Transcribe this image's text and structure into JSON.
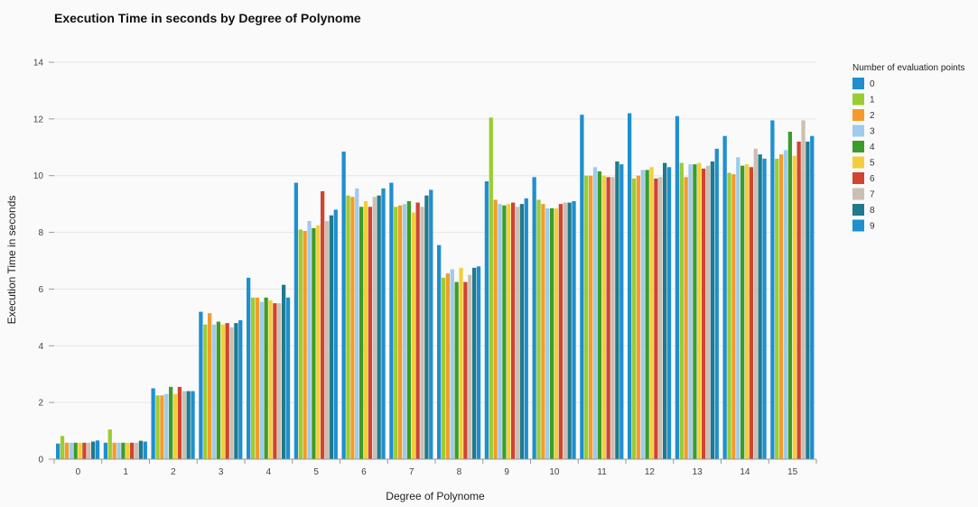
{
  "chart_data": {
    "type": "bar",
    "title": "Execution Time in seconds by Degree of Polynome",
    "xlabel": "Degree of Polynome",
    "ylabel": "Execution Time in seconds",
    "ylim": [
      0,
      14
    ],
    "yticks": [
      0,
      2,
      4,
      6,
      8,
      10,
      12,
      14
    ],
    "grid": true,
    "legend_title": "Number of evaluation points",
    "legend_position": "top-right",
    "categories": [
      "0",
      "1",
      "2",
      "3",
      "4",
      "5",
      "6",
      "7",
      "8",
      "9",
      "10",
      "11",
      "12",
      "13",
      "14",
      "15"
    ],
    "series": [
      {
        "name": "0",
        "color": "#1f8fcf",
        "values": [
          0.55,
          0.58,
          2.5,
          5.2,
          6.4,
          9.75,
          10.85,
          9.75,
          7.55,
          9.8,
          9.95,
          12.15,
          12.2,
          12.1,
          11.4,
          11.95
        ]
      },
      {
        "name": "1",
        "color": "#9acd32",
        "values": [
          0.82,
          1.05,
          2.25,
          4.75,
          5.7,
          8.1,
          9.3,
          8.9,
          6.4,
          12.05,
          9.15,
          10.0,
          9.9,
          10.45,
          10.1,
          10.6
        ]
      },
      {
        "name": "2",
        "color": "#f39c2b",
        "values": [
          0.58,
          0.58,
          2.25,
          5.15,
          5.7,
          8.05,
          9.25,
          8.95,
          6.55,
          9.15,
          9.0,
          10.0,
          10.0,
          9.95,
          10.05,
          10.75
        ]
      },
      {
        "name": "3",
        "color": "#9ecbeb",
        "values": [
          0.58,
          0.58,
          2.3,
          4.75,
          5.55,
          8.4,
          9.55,
          9.0,
          6.7,
          9.0,
          8.85,
          10.3,
          10.2,
          10.4,
          10.65,
          10.9
        ]
      },
      {
        "name": "4",
        "color": "#3c9c2a",
        "values": [
          0.58,
          0.58,
          2.55,
          4.85,
          5.7,
          8.15,
          8.9,
          9.1,
          6.25,
          8.95,
          8.85,
          10.15,
          10.2,
          10.4,
          10.35,
          11.55
        ]
      },
      {
        "name": "5",
        "color": "#f2cf3a",
        "values": [
          0.58,
          0.58,
          2.3,
          4.75,
          5.6,
          8.25,
          9.1,
          8.7,
          6.75,
          9.0,
          8.85,
          10.0,
          10.3,
          10.45,
          10.4,
          10.7
        ]
      },
      {
        "name": "6",
        "color": "#d04430",
        "values": [
          0.58,
          0.58,
          2.55,
          4.8,
          5.5,
          9.45,
          8.9,
          9.05,
          6.25,
          9.05,
          9.0,
          9.95,
          9.9,
          10.25,
          10.3,
          11.2
        ]
      },
      {
        "name": "7",
        "color": "#cbbfb4",
        "values": [
          0.58,
          0.58,
          2.4,
          4.65,
          5.5,
          8.4,
          9.25,
          8.9,
          6.5,
          8.9,
          9.05,
          9.95,
          9.95,
          10.35,
          10.95,
          11.95
        ]
      },
      {
        "name": "8",
        "color": "#1f7a8c",
        "values": [
          0.62,
          0.65,
          2.4,
          4.8,
          6.15,
          8.6,
          9.3,
          9.3,
          6.75,
          9.0,
          9.05,
          10.5,
          10.45,
          10.5,
          10.75,
          11.2
        ]
      },
      {
        "name": "9",
        "color": "#1f8fcf",
        "values": [
          0.66,
          0.62,
          2.4,
          4.9,
          5.7,
          8.8,
          9.55,
          9.5,
          6.8,
          9.2,
          9.1,
          10.4,
          10.3,
          10.95,
          10.6,
          11.4
        ]
      }
    ]
  }
}
